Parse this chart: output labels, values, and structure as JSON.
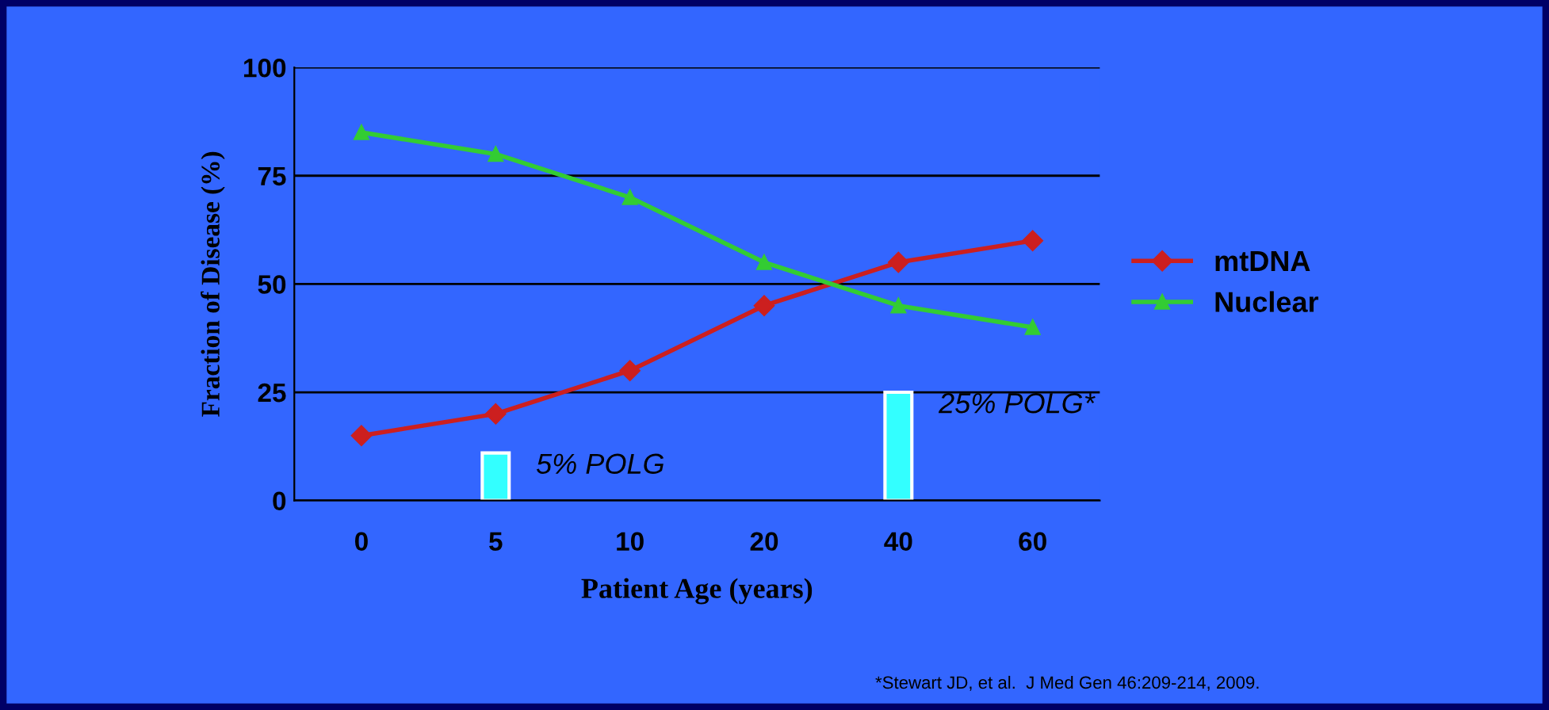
{
  "chart_data": {
    "type": "line",
    "xlabel": "Patient Age (years)",
    "ylabel": "Fraction of Disease (%)",
    "categories": [
      "0",
      "5",
      "10",
      "20",
      "40",
      "60"
    ],
    "series": [
      {
        "name": "mtDNA",
        "color": "#cc1f1f",
        "marker": "diamond",
        "values": [
          15,
          20,
          30,
          45,
          55,
          60
        ]
      },
      {
        "name": "Nuclear",
        "color": "#33cc33",
        "marker": "triangle",
        "values": [
          85,
          80,
          70,
          55,
          45,
          40
        ]
      },
      {
        "type": "bar",
        "color": "#33ffff",
        "values": [
          null,
          11,
          null,
          null,
          25,
          null
        ]
      }
    ],
    "ylim": [
      0,
      100
    ],
    "yticks": [
      0,
      25,
      50,
      75,
      100
    ],
    "grid": "y",
    "legend": "right",
    "annotations": [
      {
        "text": "5% POLG",
        "x": "5",
        "y": 11
      },
      {
        "text": "25% POLG*",
        "x": "40",
        "y": 25
      },
      "*Stewart JD, et al.  J Med Gen 46:209-214, 2009."
    ]
  }
}
